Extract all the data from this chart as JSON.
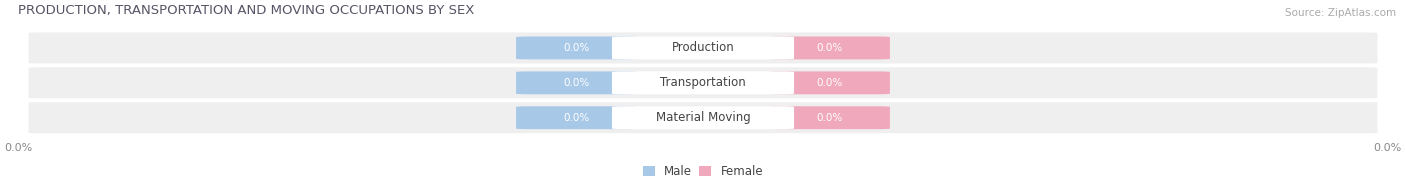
{
  "title": "PRODUCTION, TRANSPORTATION AND MOVING OCCUPATIONS BY SEX",
  "source": "Source: ZipAtlas.com",
  "categories": [
    "Production",
    "Transportation",
    "Material Moving"
  ],
  "male_values": [
    0.0,
    0.0,
    0.0
  ],
  "female_values": [
    0.0,
    0.0,
    0.0
  ],
  "male_color": "#a8c8e8",
  "female_color": "#f0a8bc",
  "male_label": "Male",
  "female_label": "Female",
  "title_fontsize": 9.5,
  "source_fontsize": 7.5,
  "label_fontsize": 8.5,
  "value_fontsize": 7.5,
  "tick_fontsize": 8,
  "background_color": "#ffffff",
  "row_bg_color": "#efefef",
  "value_text_color": "#ffffff",
  "category_text_color": "#444444",
  "axis_label_color": "#888888",
  "title_color": "#555566"
}
